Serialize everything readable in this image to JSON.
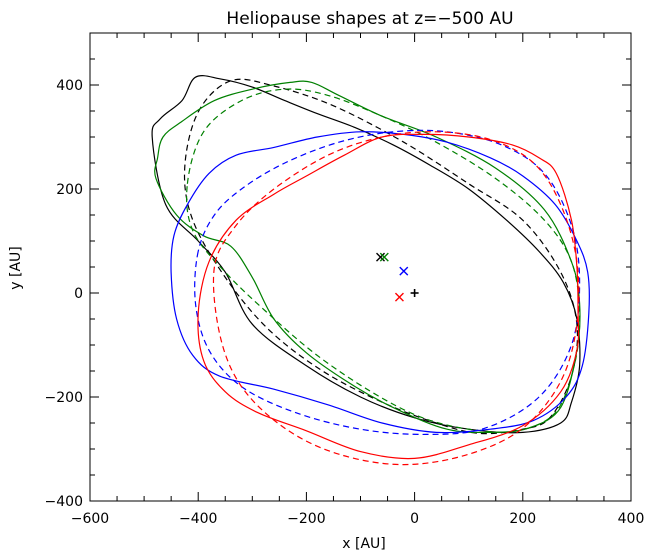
{
  "chart_data": {
    "type": "line",
    "title": "Heliopause shapes at z=−500 AU",
    "xlabel": "x [AU]",
    "ylabel": "y [AU]",
    "xlim": [
      -600,
      400
    ],
    "ylim": [
      -400,
      500
    ],
    "x_ticks": [
      -600,
      -400,
      -200,
      0,
      200,
      400
    ],
    "x_tick_labels": [
      "−600",
      "−400",
      "−200",
      "0",
      "200",
      "400"
    ],
    "y_ticks": [
      -400,
      -200,
      0,
      200,
      400
    ],
    "y_tick_labels": [
      "−400",
      "−200",
      "0",
      "200",
      "400"
    ],
    "x_minor_step": 50,
    "y_minor_step": 50,
    "grid": false,
    "series": [
      {
        "color": "#000000",
        "style": "solid",
        "points": [
          [
            -405,
            415
          ],
          [
            -360,
            412
          ],
          [
            -300,
            396
          ],
          [
            -240,
            370
          ],
          [
            -180,
            345
          ],
          [
            -110,
            318
          ],
          [
            -40,
            285
          ],
          [
            30,
            245
          ],
          [
            100,
            200
          ],
          [
            170,
            140
          ],
          [
            230,
            80
          ],
          [
            275,
            20
          ],
          [
            300,
            -50
          ],
          [
            305,
            -140
          ],
          [
            290,
            -210
          ],
          [
            270,
            -250
          ],
          [
            200,
            -268
          ],
          [
            100,
            -262
          ],
          [
            0,
            -240
          ],
          [
            -100,
            -200
          ],
          [
            -200,
            -140
          ],
          [
            -300,
            -60
          ],
          [
            -350,
            40
          ],
          [
            -400,
            100
          ],
          [
            -460,
            170
          ],
          [
            -485,
            300
          ],
          [
            -470,
            335
          ],
          [
            -430,
            370
          ],
          [
            -405,
            415
          ]
        ]
      },
      {
        "color": "#000000",
        "style": "dashed",
        "points": [
          [
            -400,
            348
          ],
          [
            -340,
            408
          ],
          [
            -260,
            398
          ],
          [
            -150,
            360
          ],
          [
            -20,
            290
          ],
          [
            100,
            210
          ],
          [
            200,
            140
          ],
          [
            270,
            40
          ],
          [
            300,
            -60
          ],
          [
            290,
            -160
          ],
          [
            250,
            -240
          ],
          [
            200,
            -262
          ],
          [
            120,
            -270
          ],
          [
            40,
            -250
          ],
          [
            -60,
            -210
          ],
          [
            -170,
            -150
          ],
          [
            -270,
            -70
          ],
          [
            -350,
            30
          ],
          [
            -410,
            140
          ],
          [
            -425,
            240
          ],
          [
            -400,
            348
          ]
        ]
      },
      {
        "color": "#008000",
        "style": "solid",
        "points": [
          [
            -478,
            220
          ],
          [
            -475,
            260
          ],
          [
            -465,
            300
          ],
          [
            -430,
            330
          ],
          [
            -370,
            370
          ],
          [
            -300,
            392
          ],
          [
            -230,
            405
          ],
          [
            -190,
            405
          ],
          [
            -140,
            380
          ],
          [
            -60,
            340
          ],
          [
            40,
            300
          ],
          [
            150,
            240
          ],
          [
            240,
            160
          ],
          [
            290,
            60
          ],
          [
            305,
            -20
          ],
          [
            300,
            -110
          ],
          [
            270,
            -220
          ],
          [
            210,
            -260
          ],
          [
            140,
            -268
          ],
          [
            60,
            -262
          ],
          [
            -30,
            -225
          ],
          [
            -110,
            -180
          ],
          [
            -200,
            -115
          ],
          [
            -260,
            -50
          ],
          [
            -300,
            30
          ],
          [
            -340,
            90
          ],
          [
            -390,
            110
          ],
          [
            -440,
            150
          ],
          [
            -478,
            220
          ]
        ]
      },
      {
        "color": "#008000",
        "style": "dashed",
        "points": [
          [
            -420,
            210
          ],
          [
            -390,
            310
          ],
          [
            -320,
            370
          ],
          [
            -240,
            392
          ],
          [
            -160,
            380
          ],
          [
            -60,
            340
          ],
          [
            40,
            290
          ],
          [
            150,
            220
          ],
          [
            240,
            140
          ],
          [
            290,
            60
          ],
          [
            305,
            -40
          ],
          [
            295,
            -140
          ],
          [
            260,
            -230
          ],
          [
            190,
            -265
          ],
          [
            100,
            -262
          ],
          [
            10,
            -238
          ],
          [
            -80,
            -190
          ],
          [
            -180,
            -120
          ],
          [
            -270,
            -40
          ],
          [
            -350,
            40
          ],
          [
            -410,
            120
          ],
          [
            -420,
            210
          ]
        ]
      },
      {
        "color": "#0000ff",
        "style": "solid",
        "points": [
          [
            -450,
            40
          ],
          [
            -440,
            -50
          ],
          [
            -410,
            -120
          ],
          [
            -360,
            -160
          ],
          [
            -260,
            -185
          ],
          [
            -160,
            -215
          ],
          [
            -60,
            -250
          ],
          [
            40,
            -268
          ],
          [
            140,
            -262
          ],
          [
            220,
            -245
          ],
          [
            280,
            -200
          ],
          [
            310,
            -140
          ],
          [
            322,
            -40
          ],
          [
            320,
            40
          ],
          [
            300,
            100
          ],
          [
            260,
            170
          ],
          [
            200,
            225
          ],
          [
            140,
            260
          ],
          [
            60,
            290
          ],
          [
            -20,
            305
          ],
          [
            -100,
            310
          ],
          [
            -180,
            300
          ],
          [
            -260,
            280
          ],
          [
            -330,
            265
          ],
          [
            -380,
            230
          ],
          [
            -420,
            170
          ],
          [
            -445,
            110
          ],
          [
            -450,
            40
          ]
        ]
      },
      {
        "color": "#0000ff",
        "style": "dashed",
        "points": [
          [
            -400,
            80
          ],
          [
            -405,
            -20
          ],
          [
            -380,
            -110
          ],
          [
            -320,
            -180
          ],
          [
            -220,
            -230
          ],
          [
            -100,
            -262
          ],
          [
            20,
            -272
          ],
          [
            130,
            -260
          ],
          [
            230,
            -200
          ],
          [
            290,
            -100
          ],
          [
            305,
            20
          ],
          [
            290,
            130
          ],
          [
            240,
            230
          ],
          [
            160,
            285
          ],
          [
            60,
            310
          ],
          [
            -40,
            310
          ],
          [
            -140,
            290
          ],
          [
            -240,
            250
          ],
          [
            -320,
            200
          ],
          [
            -370,
            150
          ],
          [
            -400,
            80
          ]
        ]
      },
      {
        "color": "#ff0000",
        "style": "solid",
        "points": [
          [
            -400,
            -40
          ],
          [
            -390,
            -130
          ],
          [
            -350,
            -190
          ],
          [
            -290,
            -230
          ],
          [
            -200,
            -265
          ],
          [
            -100,
            -305
          ],
          [
            0,
            -318
          ],
          [
            100,
            -292
          ],
          [
            200,
            -255
          ],
          [
            270,
            -190
          ],
          [
            300,
            -110
          ],
          [
            302,
            -30
          ],
          [
            300,
            50
          ],
          [
            290,
            140
          ],
          [
            262,
            230
          ],
          [
            230,
            260
          ],
          [
            180,
            285
          ],
          [
            100,
            300
          ],
          [
            20,
            305
          ],
          [
            -60,
            300
          ],
          [
            -130,
            265
          ],
          [
            -200,
            225
          ],
          [
            -260,
            190
          ],
          [
            -330,
            140
          ],
          [
            -380,
            60
          ],
          [
            -400,
            -40
          ]
        ]
      },
      {
        "color": "#ff0000",
        "style": "dashed",
        "points": [
          [
            -370,
            50
          ],
          [
            -360,
            -80
          ],
          [
            -320,
            -180
          ],
          [
            -240,
            -260
          ],
          [
            -140,
            -310
          ],
          [
            -20,
            -330
          ],
          [
            100,
            -310
          ],
          [
            200,
            -260
          ],
          [
            270,
            -170
          ],
          [
            300,
            -60
          ],
          [
            300,
            60
          ],
          [
            270,
            170
          ],
          [
            220,
            250
          ],
          [
            140,
            295
          ],
          [
            40,
            310
          ],
          [
            -60,
            300
          ],
          [
            -160,
            265
          ],
          [
            -260,
            200
          ],
          [
            -330,
            130
          ],
          [
            -370,
            50
          ]
        ]
      }
    ],
    "markers": [
      {
        "symbol": "×",
        "color": "#000000",
        "x": -63,
        "y": 69
      },
      {
        "symbol": "×",
        "color": "#008000",
        "x": -56,
        "y": 69
      },
      {
        "symbol": "×",
        "color": "#0000ff",
        "x": -20,
        "y": 42
      },
      {
        "symbol": "×",
        "color": "#ff0000",
        "x": -28,
        "y": -8
      },
      {
        "symbol": "+",
        "color": "#000000",
        "x": 0,
        "y": 0
      }
    ]
  }
}
